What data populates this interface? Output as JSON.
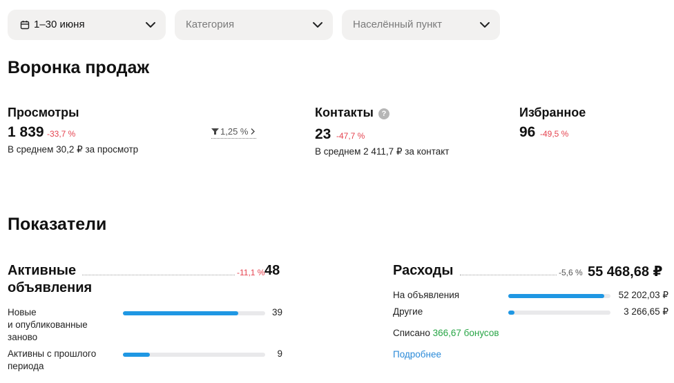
{
  "filters": {
    "period": "1–30 июня",
    "category_placeholder": "Категория",
    "location_placeholder": "Населённый пункт"
  },
  "funnel": {
    "title": "Воронка продаж",
    "views": {
      "title": "Просмотры",
      "value": "1 839",
      "delta": "-33,7 %",
      "sub": "В среднем 30,2 ₽ за просмотр",
      "conversion": "1,25 %"
    },
    "contacts": {
      "title": "Контакты",
      "help": "?",
      "value": "23",
      "delta": "-47,7 %",
      "sub": "В среднем 2 411,7 ₽ за контакт"
    },
    "favorites": {
      "title": "Избранное",
      "value": "96",
      "delta": "-49,5 %"
    }
  },
  "indicators": {
    "title": "Показатели",
    "active_ads": {
      "title_line1": "Активные",
      "title_line2": "объявления",
      "delta": "-11,1 %",
      "value": "48",
      "rows": [
        {
          "label_lines": [
            "Новые",
            "и опубликованные",
            "заново"
          ],
          "value": "39",
          "share": 0.81
        },
        {
          "label_lines": [
            "Активны с прошлого",
            "периода"
          ],
          "value": "9",
          "share": 0.19
        }
      ]
    },
    "expenses": {
      "title": "Расходы",
      "delta": "-5,6 %",
      "value": "55 468,68 ₽",
      "rows": [
        {
          "label": "На объявления",
          "value": "52 202,03 ₽",
          "share": 0.94
        },
        {
          "label": "Другие",
          "value": "3 266,65 ₽",
          "share": 0.06
        }
      ],
      "written_off_prefix": "Списано",
      "written_off_amount": "366,67 бонусов",
      "more_link": "Подробнее"
    }
  },
  "colors": {
    "accent_blue": "#1f97e3",
    "negative_red": "#e5434f",
    "bonus_green": "#27a545",
    "link_blue": "#2a8ad8"
  }
}
